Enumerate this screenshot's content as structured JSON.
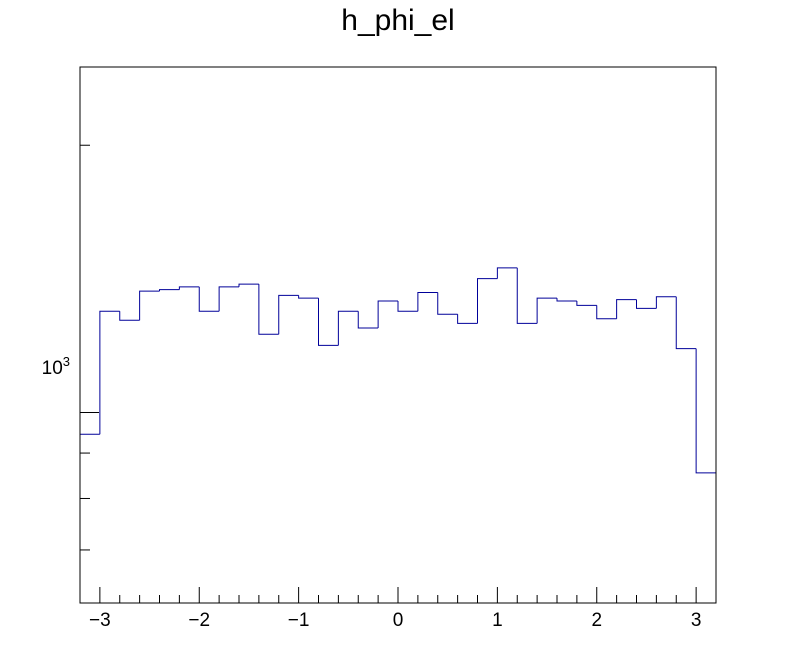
{
  "chart_data": {
    "type": "histogram",
    "title": "h_phi_el",
    "xlabel": "",
    "ylabel": "",
    "xlim": [
      -3.2,
      3.2
    ],
    "ylim": [
      610,
      2450
    ],
    "y_scale": "log",
    "bin_edges": [
      -3.2,
      -3.0,
      -2.8,
      -2.6,
      -2.4,
      -2.2,
      -2.0,
      -1.8,
      -1.6,
      -1.4,
      -1.2,
      -1.0,
      -0.8,
      -0.6,
      -0.4,
      -0.2,
      0.0,
      0.2,
      0.4,
      0.6,
      0.8,
      1.0,
      1.2,
      1.4,
      1.6,
      1.8,
      2.0,
      2.2,
      2.4,
      2.6,
      2.8,
      3.0,
      3.2
    ],
    "values": [
      945,
      1300,
      1270,
      1370,
      1375,
      1385,
      1300,
      1385,
      1395,
      1225,
      1355,
      1345,
      1190,
      1300,
      1245,
      1335,
      1300,
      1365,
      1290,
      1260,
      1415,
      1455,
      1260,
      1345,
      1335,
      1320,
      1275,
      1340,
      1310,
      1350,
      1180,
      855
    ],
    "x_ticks": [
      -3,
      -2,
      -1,
      0,
      1,
      2,
      3
    ],
    "x_tick_labels": [
      "−3",
      "−2",
      "−1",
      "0",
      "1",
      "2",
      "3"
    ],
    "y_major_ticks": [
      1000
    ],
    "y_tick_label": {
      "base": "10",
      "exponent": "3"
    },
    "y_minor_ticks": [
      700,
      800,
      900,
      2000
    ],
    "line_color": "#000099",
    "frame_color": "#000000",
    "grid": false
  }
}
